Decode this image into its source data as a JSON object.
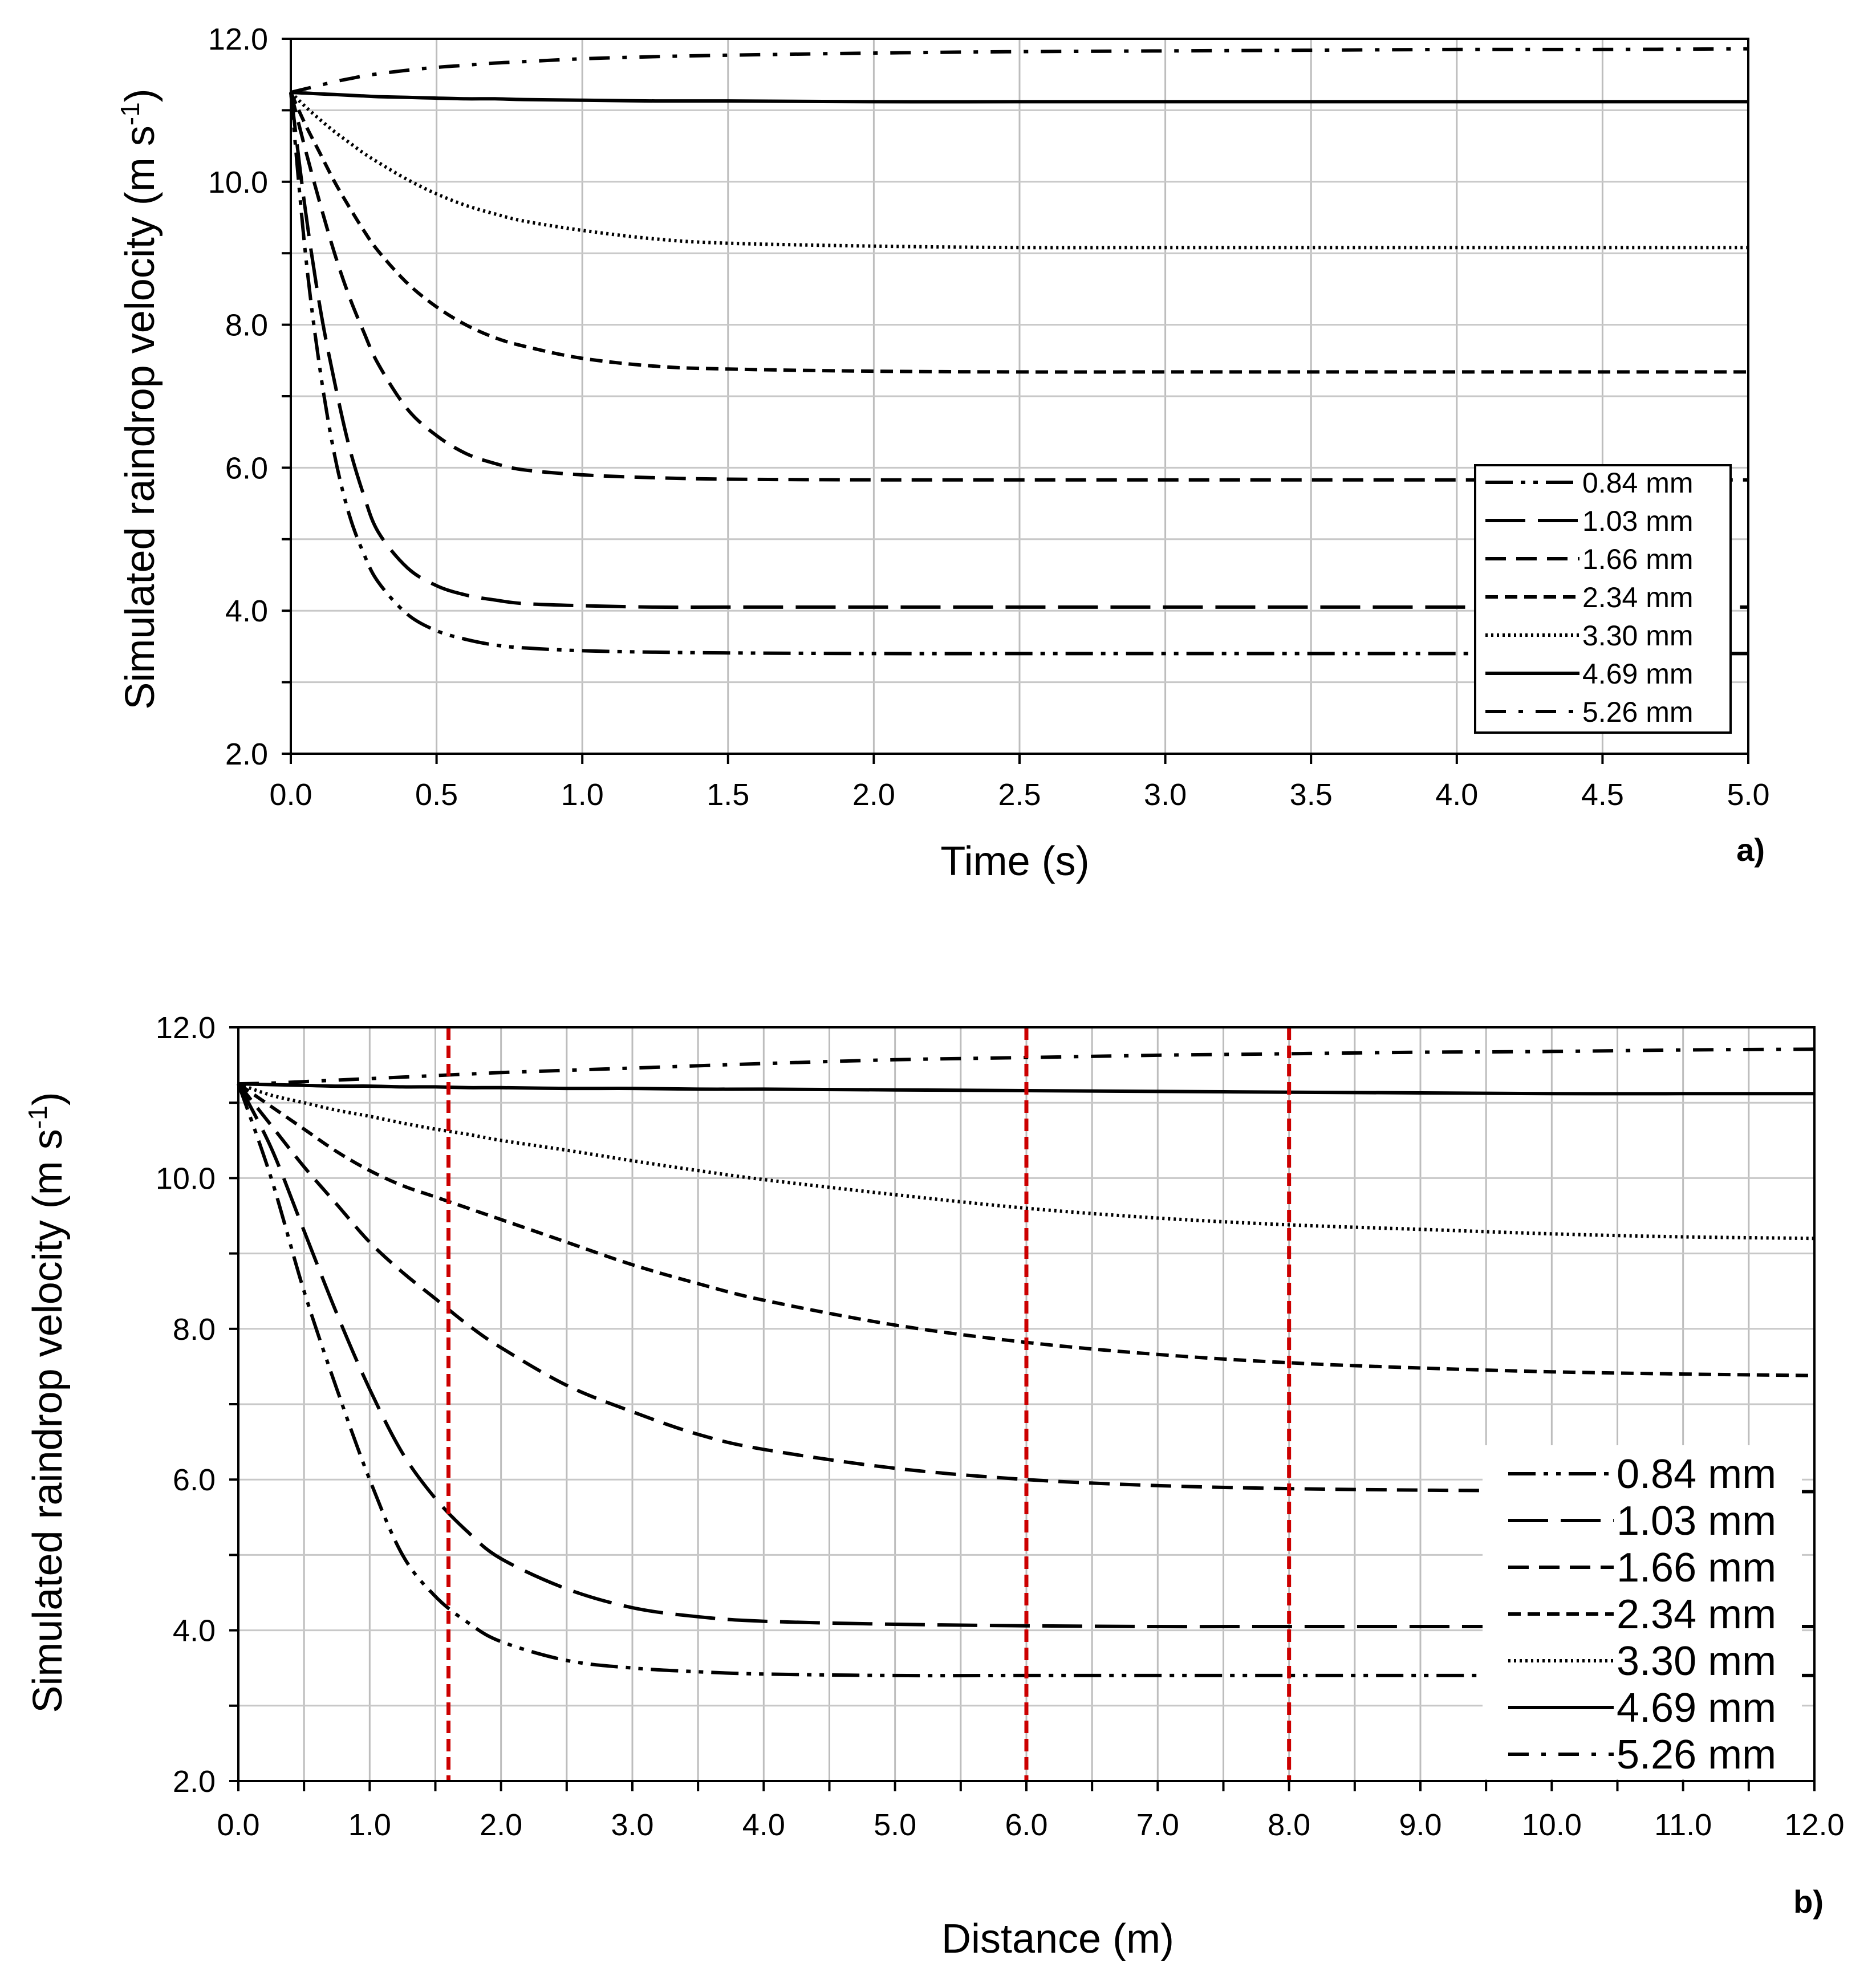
{
  "chart_data": [
    {
      "type": "line",
      "panel_label": "a)",
      "xlabel": "Time (s)",
      "ylabel_main": "Simulated raindrop velocity (m s",
      "ylabel_sup": "-1",
      "ylabel_end": ")",
      "xlim": [
        0,
        5
      ],
      "ylim": [
        2,
        12
      ],
      "x_tick_labels": [
        "0.0",
        "0.5",
        "1.0",
        "1.5",
        "2.0",
        "2.5",
        "3.0",
        "3.5",
        "4.0",
        "4.5",
        "5.0"
      ],
      "y_tick_labels": [
        "2.0",
        "4.0",
        "6.0",
        "8.0",
        "10.0",
        "12.0"
      ],
      "grid": true,
      "legend_position": "bottom-right",
      "x": [
        0,
        0.05,
        0.1,
        0.15,
        0.2,
        0.25,
        0.3,
        0.4,
        0.5,
        0.6,
        0.7,
        0.8,
        1.0,
        1.25,
        1.5,
        2.0,
        2.5,
        3.0,
        3.5,
        4.0,
        4.5,
        5.0
      ],
      "series": [
        {
          "name": "0.84 mm",
          "dash": "dashdotdot",
          "values": [
            11.25,
            9.0,
            7.38,
            6.18,
            5.35,
            4.8,
            4.4,
            3.95,
            3.72,
            3.6,
            3.52,
            3.48,
            3.44,
            3.42,
            3.41,
            3.4,
            3.4,
            3.4,
            3.4,
            3.4,
            3.4,
            3.4
          ]
        },
        {
          "name": "1.03 mm",
          "dash": "longdash",
          "values": [
            11.25,
            9.6,
            8.25,
            7.2,
            6.3,
            5.62,
            5.1,
            4.6,
            4.35,
            4.22,
            4.15,
            4.1,
            4.07,
            4.05,
            4.05,
            4.05,
            4.05,
            4.05,
            4.05,
            4.05,
            4.05,
            4.05
          ]
        },
        {
          "name": "1.66 mm",
          "dash": "mediumdash",
          "values": [
            11.25,
            10.45,
            9.7,
            9.0,
            8.4,
            7.9,
            7.45,
            6.82,
            6.45,
            6.2,
            6.06,
            5.97,
            5.9,
            5.86,
            5.84,
            5.83,
            5.83,
            5.83,
            5.83,
            5.83,
            5.83,
            5.83
          ]
        },
        {
          "name": "2.34 mm",
          "dash": "shortdash",
          "values": [
            11.25,
            10.8,
            10.4,
            10.0,
            9.65,
            9.32,
            9.03,
            8.58,
            8.25,
            8.0,
            7.82,
            7.7,
            7.53,
            7.42,
            7.38,
            7.35,
            7.34,
            7.34,
            7.34,
            7.34,
            7.34,
            7.34
          ]
        },
        {
          "name": "3.30 mm",
          "dash": "dotted",
          "values": [
            11.25,
            11.05,
            10.87,
            10.7,
            10.55,
            10.4,
            10.27,
            10.03,
            9.83,
            9.67,
            9.55,
            9.45,
            9.32,
            9.2,
            9.14,
            9.1,
            9.08,
            9.08,
            9.08,
            9.08,
            9.08,
            9.08
          ]
        },
        {
          "name": "4.69 mm",
          "dash": "solid",
          "values": [
            11.25,
            11.24,
            11.23,
            11.22,
            11.21,
            11.2,
            11.19,
            11.18,
            11.17,
            11.16,
            11.16,
            11.15,
            11.14,
            11.13,
            11.13,
            11.12,
            11.12,
            11.12,
            11.12,
            11.12,
            11.12,
            11.12
          ]
        },
        {
          "name": "5.26 mm",
          "dash": "dashdot",
          "values": [
            11.25,
            11.3,
            11.35,
            11.4,
            11.44,
            11.48,
            11.51,
            11.56,
            11.6,
            11.63,
            11.66,
            11.68,
            11.72,
            11.75,
            11.77,
            11.8,
            11.82,
            11.83,
            11.84,
            11.85,
            11.85,
            11.86
          ]
        }
      ]
    },
    {
      "type": "line",
      "panel_label": "b)",
      "xlabel": "Distance (m)",
      "ylabel_main": "Simulated raindrop velocity (m s",
      "ylabel_sup": "-1",
      "ylabel_end": ")",
      "xlim": [
        0,
        12
      ],
      "ylim": [
        2,
        12
      ],
      "x_tick_labels": [
        "0.0",
        "1.0",
        "2.0",
        "3.0",
        "4.0",
        "5.0",
        "6.0",
        "7.0",
        "8.0",
        "9.0",
        "10.0",
        "11.0",
        "12.0"
      ],
      "y_tick_labels": [
        "2.0",
        "4.0",
        "6.0",
        "8.0",
        "10.0",
        "12.0"
      ],
      "grid": true,
      "legend_position": "bottom-right",
      "reference_lines_x": [
        1.6,
        6.0,
        8.0
      ],
      "reference_line_color": "#cc0000",
      "x": [
        0,
        0.25,
        0.5,
        0.75,
        1.0,
        1.25,
        1.5,
        1.75,
        2.0,
        2.5,
        3.0,
        3.5,
        4.0,
        5.0,
        6.0,
        7.0,
        8.0,
        9.0,
        10.0,
        11.0,
        12.0
      ],
      "series": [
        {
          "name": "0.84 mm",
          "dash": "dashdotdot",
          "values": [
            11.25,
            10.0,
            8.5,
            7.2,
            6.0,
            5.0,
            4.45,
            4.1,
            3.85,
            3.6,
            3.5,
            3.45,
            3.42,
            3.4,
            3.4,
            3.4,
            3.4,
            3.4,
            3.4,
            3.4,
            3.4
          ]
        },
        {
          "name": "1.03 mm",
          "dash": "longdash",
          "values": [
            11.25,
            10.4,
            9.3,
            8.2,
            7.2,
            6.35,
            5.75,
            5.3,
            4.95,
            4.55,
            4.3,
            4.18,
            4.12,
            4.08,
            4.06,
            4.05,
            4.05,
            4.05,
            4.05,
            4.05,
            4.05
          ]
        },
        {
          "name": "1.66 mm",
          "dash": "mediumdash",
          "values": [
            11.25,
            10.7,
            10.15,
            9.65,
            9.15,
            8.75,
            8.4,
            8.05,
            7.75,
            7.25,
            6.9,
            6.6,
            6.4,
            6.15,
            6.0,
            5.92,
            5.88,
            5.86,
            5.85,
            5.84,
            5.84
          ]
        },
        {
          "name": "2.34 mm",
          "dash": "shortdash",
          "values": [
            11.25,
            10.95,
            10.65,
            10.35,
            10.1,
            9.9,
            9.75,
            9.6,
            9.45,
            9.15,
            8.85,
            8.6,
            8.38,
            8.05,
            7.82,
            7.66,
            7.55,
            7.48,
            7.43,
            7.4,
            7.38
          ]
        },
        {
          "name": "3.30 mm",
          "dash": "dotted",
          "values": [
            11.25,
            11.1,
            11.0,
            10.9,
            10.82,
            10.73,
            10.65,
            10.58,
            10.5,
            10.37,
            10.23,
            10.1,
            9.98,
            9.78,
            9.6,
            9.47,
            9.38,
            9.32,
            9.26,
            9.22,
            9.2
          ]
        },
        {
          "name": "4.69 mm",
          "dash": "solid",
          "values": [
            11.25,
            11.24,
            11.23,
            11.22,
            11.22,
            11.21,
            11.21,
            11.2,
            11.2,
            11.19,
            11.19,
            11.18,
            11.18,
            11.17,
            11.16,
            11.15,
            11.14,
            11.13,
            11.12,
            11.12,
            11.12
          ]
        },
        {
          "name": "5.26 mm",
          "dash": "dashdot",
          "values": [
            11.25,
            11.26,
            11.28,
            11.3,
            11.32,
            11.34,
            11.36,
            11.38,
            11.4,
            11.43,
            11.46,
            11.49,
            11.52,
            11.57,
            11.6,
            11.63,
            11.65,
            11.67,
            11.68,
            11.7,
            11.71
          ]
        }
      ]
    }
  ]
}
